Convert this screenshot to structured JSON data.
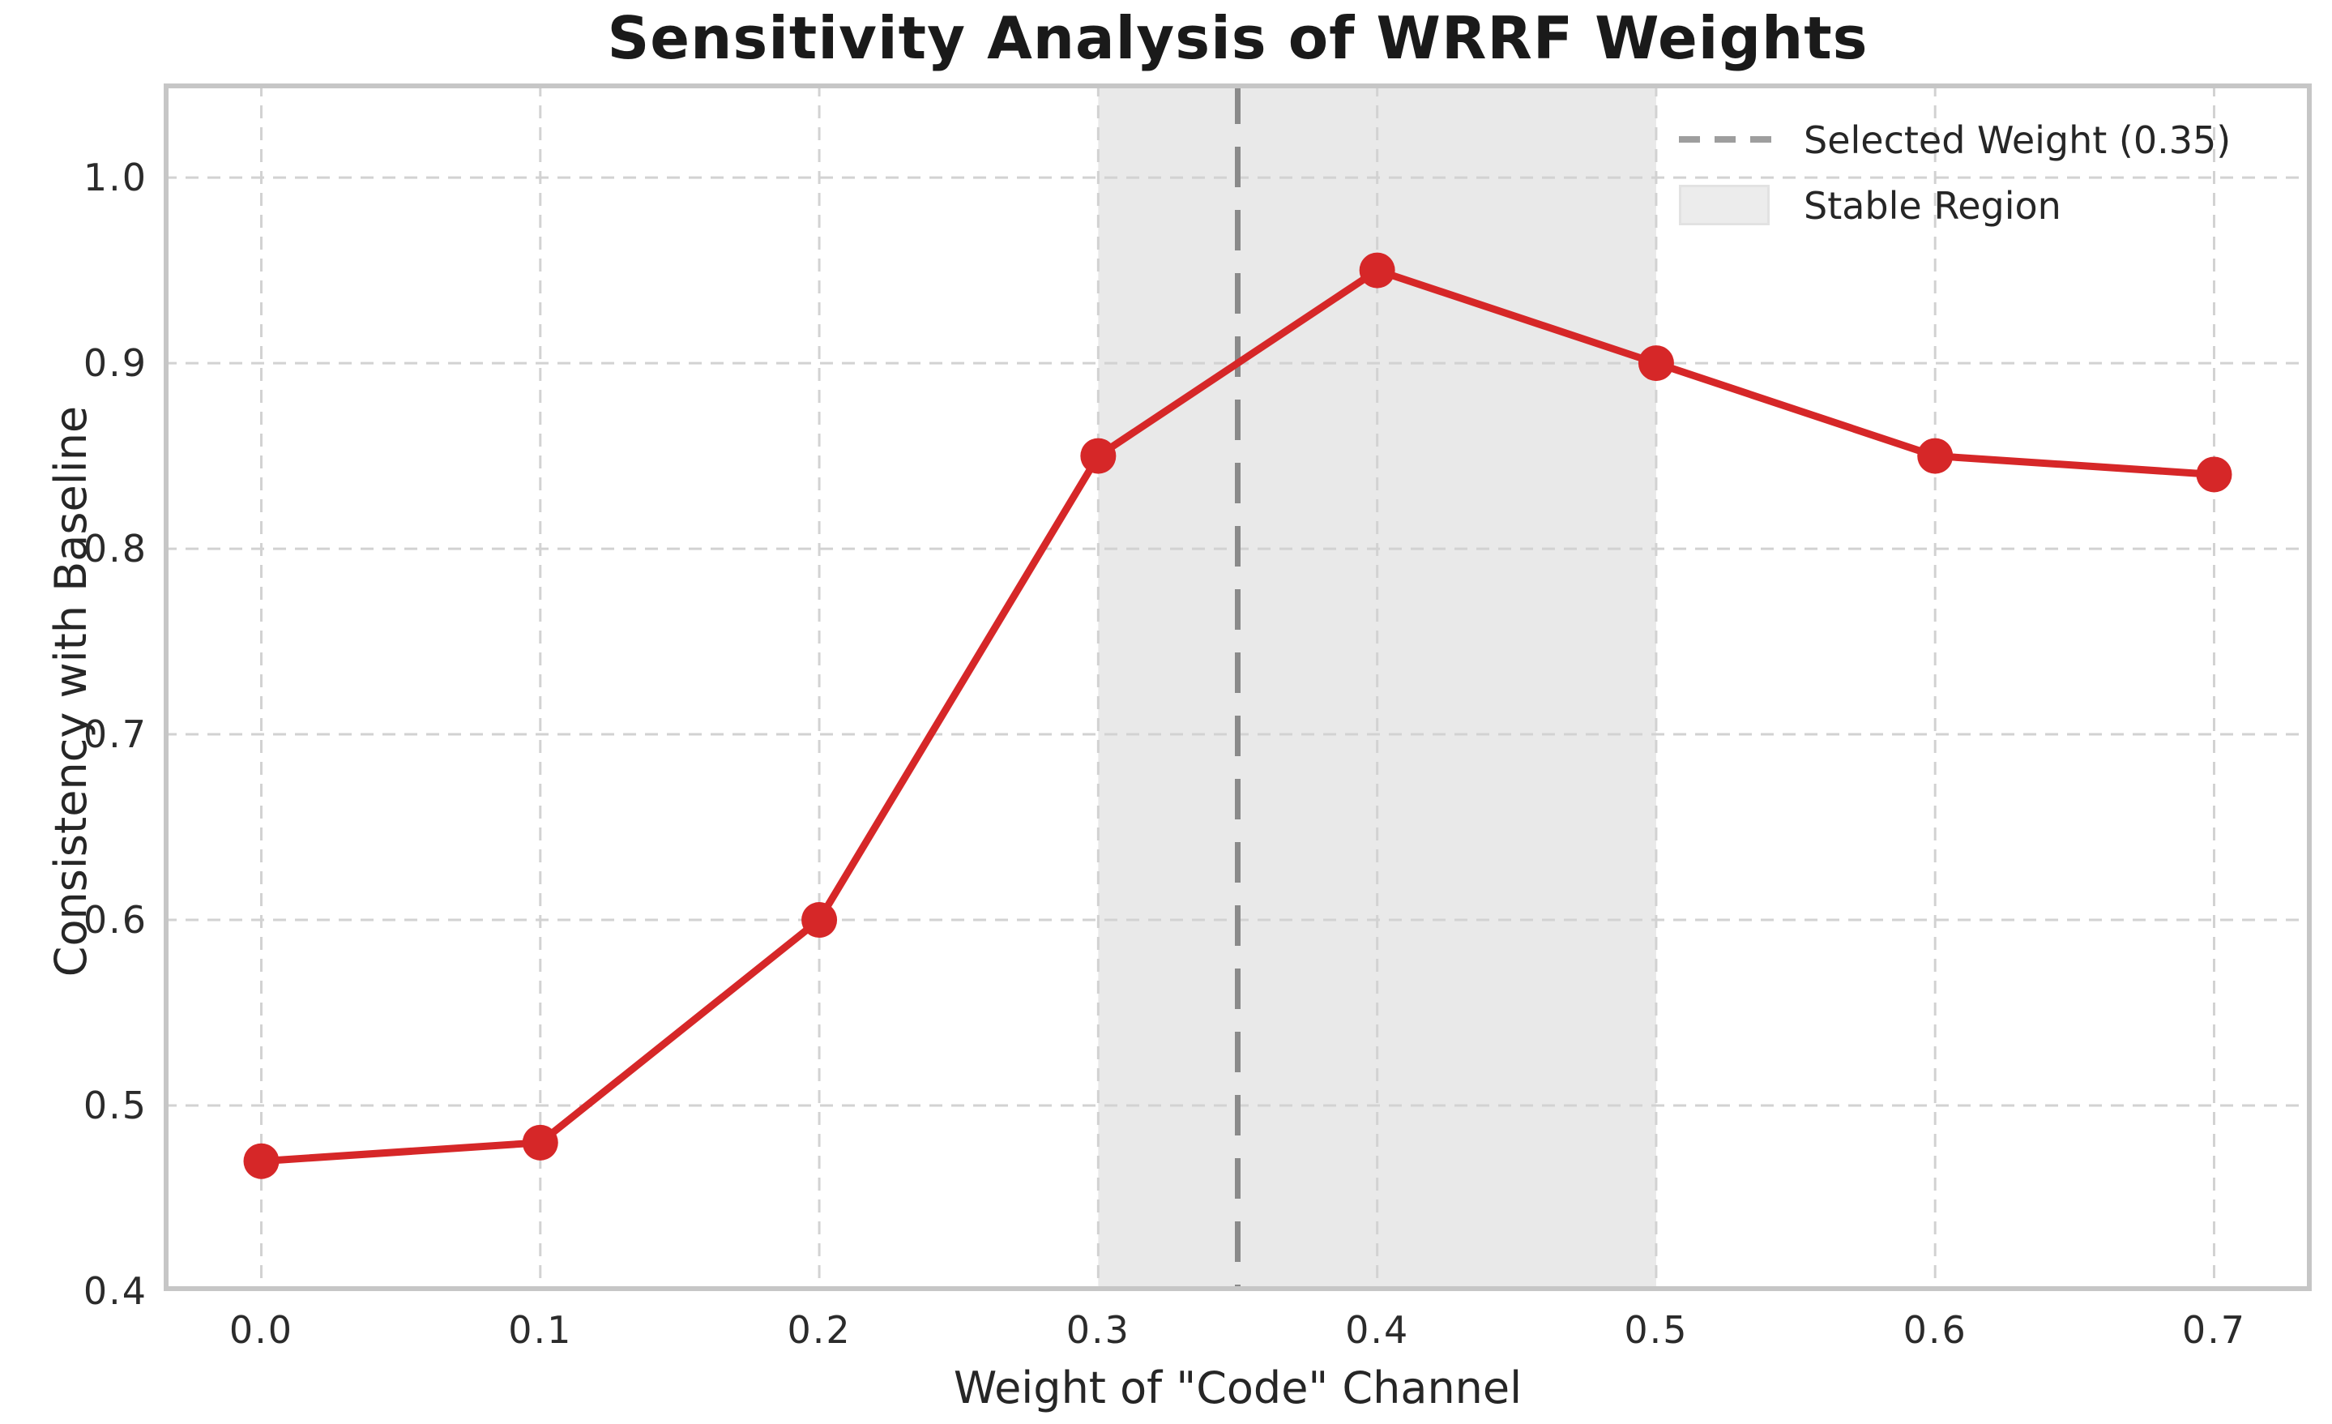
{
  "chart_data": {
    "type": "line",
    "title": "Sensitivity Analysis of WRRF Weights",
    "xlabel": "Weight of \"Code\" Channel",
    "ylabel": "Consistency with Baseline",
    "x": [
      0.0,
      0.1,
      0.2,
      0.3,
      0.4,
      0.5,
      0.6,
      0.7
    ],
    "y": [
      0.47,
      0.48,
      0.6,
      0.85,
      0.95,
      0.9,
      0.85,
      0.84
    ],
    "xticks": {
      "values": [
        0.0,
        0.1,
        0.2,
        0.3,
        0.4,
        0.5,
        0.6,
        0.7
      ],
      "labels": [
        "0.0",
        "0.1",
        "0.2",
        "0.3",
        "0.4",
        "0.5",
        "0.6",
        "0.7"
      ]
    },
    "yticks": {
      "values": [
        0.4,
        0.5,
        0.6,
        0.7,
        0.8,
        0.9,
        1.0
      ],
      "labels": [
        "0.4",
        "0.5",
        "0.6",
        "0.7",
        "0.8",
        "0.9",
        "1.0"
      ]
    },
    "xlim": [
      -0.035,
      0.735
    ],
    "ylim": [
      0.4,
      1.0507
    ],
    "grid": true,
    "grid_style": "dashed",
    "legend": {
      "position": "upper right",
      "entries": [
        {
          "label": "Selected Weight (0.35)",
          "sample": "dashed-line"
        },
        {
          "label": "Stable Region",
          "sample": "filled-patch"
        }
      ]
    },
    "annotations": {
      "selected_weight_x": 0.35,
      "stable_region_x": [
        0.3,
        0.5
      ]
    },
    "colors": {
      "line": "#d62728",
      "marker": "#d62728",
      "selected_weight_line": "#8a8a8a",
      "stable_region_fill": "#e9e9e9",
      "grid": "#d2d2d2",
      "spine": "#c6c6c6",
      "text": "#262626",
      "title": "#1a1a1a"
    }
  }
}
